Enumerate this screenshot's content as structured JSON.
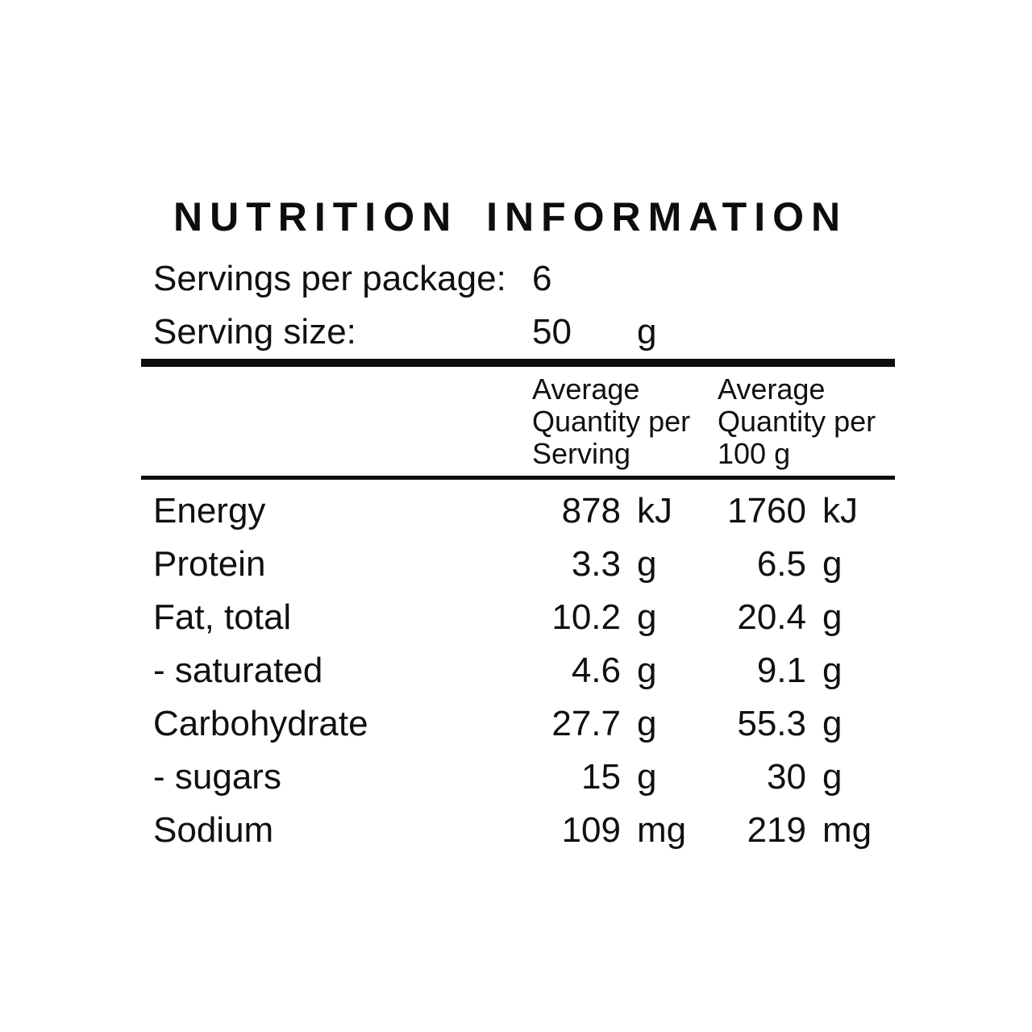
{
  "panel": {
    "title": "NUTRITION INFORMATION",
    "servings_label": "Servings per package:",
    "servings_value": "6",
    "serving_size_label": "Serving size:",
    "serving_size_value": "50",
    "serving_size_unit": "g",
    "header": {
      "per_serving": [
        "Average",
        "Quantity per",
        "Serving"
      ],
      "per_100g": [
        "Average",
        "Quantity per",
        "100 g"
      ]
    },
    "rows": [
      {
        "name": "Energy",
        "serving_value": "878",
        "serving_unit": "kJ",
        "per100_value": "1760",
        "per100_unit": "kJ"
      },
      {
        "name": "Protein",
        "serving_value": "3.3",
        "serving_unit": "g",
        "per100_value": "6.5",
        "per100_unit": "g"
      },
      {
        "name": "Fat, total",
        "serving_value": "10.2",
        "serving_unit": "g",
        "per100_value": "20.4",
        "per100_unit": "g"
      },
      {
        "name": "- saturated",
        "serving_value": "4.6",
        "serving_unit": "g",
        "per100_value": "9.1",
        "per100_unit": "g"
      },
      {
        "name": "Carbohydrate",
        "serving_value": "27.7",
        "serving_unit": "g",
        "per100_value": "55.3",
        "per100_unit": "g"
      },
      {
        "name": "- sugars",
        "serving_value": "15",
        "serving_unit": "g",
        "per100_value": "30",
        "per100_unit": "g"
      },
      {
        "name": "Sodium",
        "serving_value": "109",
        "serving_unit": "mg",
        "per100_value": "219",
        "per100_unit": "mg"
      }
    ],
    "colors": {
      "text": "#0d0d0d",
      "background": "#ffffff",
      "rule": "#0d0d0d"
    }
  }
}
